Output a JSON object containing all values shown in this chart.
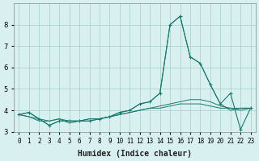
{
  "xlabel": "Humidex (Indice chaleur)",
  "x_values": [
    0,
    1,
    2,
    3,
    4,
    5,
    6,
    7,
    8,
    9,
    10,
    11,
    12,
    13,
    14,
    15,
    16,
    17,
    18,
    19,
    20,
    21,
    22,
    23
  ],
  "series": [
    [
      3.8,
      3.9,
      3.6,
      3.3,
      3.5,
      3.5,
      3.5,
      3.5,
      3.6,
      3.7,
      3.9,
      4.0,
      4.3,
      4.4,
      4.8,
      8.0,
      8.4,
      6.5,
      6.2,
      5.2,
      4.3,
      4.8,
      3.1,
      4.1
    ],
    [
      3.8,
      3.9,
      3.6,
      3.3,
      3.5,
      3.5,
      3.5,
      3.5,
      3.6,
      3.7,
      3.9,
      4.0,
      4.3,
      4.4,
      4.8,
      8.0,
      8.4,
      6.5,
      6.2,
      5.2,
      4.3,
      4.0,
      4.1,
      4.1
    ],
    [
      3.8,
      3.7,
      3.5,
      3.5,
      3.6,
      3.4,
      3.5,
      3.6,
      3.6,
      3.7,
      3.8,
      3.9,
      4.0,
      4.1,
      4.2,
      4.3,
      4.4,
      4.5,
      4.5,
      4.4,
      4.2,
      4.1,
      4.1,
      4.1
    ],
    [
      3.8,
      3.7,
      3.6,
      3.5,
      3.6,
      3.5,
      3.5,
      3.6,
      3.6,
      3.7,
      3.8,
      3.9,
      4.0,
      4.1,
      4.1,
      4.2,
      4.3,
      4.3,
      4.3,
      4.2,
      4.1,
      4.1,
      4.0,
      4.1
    ]
  ],
  "line_color": "#1a7a6e",
  "bg_color": "#d8f0ef",
  "grid_color": "#a0d0ce",
  "ylim": [
    3.0,
    9.0
  ],
  "yticks": [
    3,
    4,
    5,
    6,
    7,
    8
  ],
  "figsize": [
    3.2,
    2.0
  ],
  "dpi": 100
}
